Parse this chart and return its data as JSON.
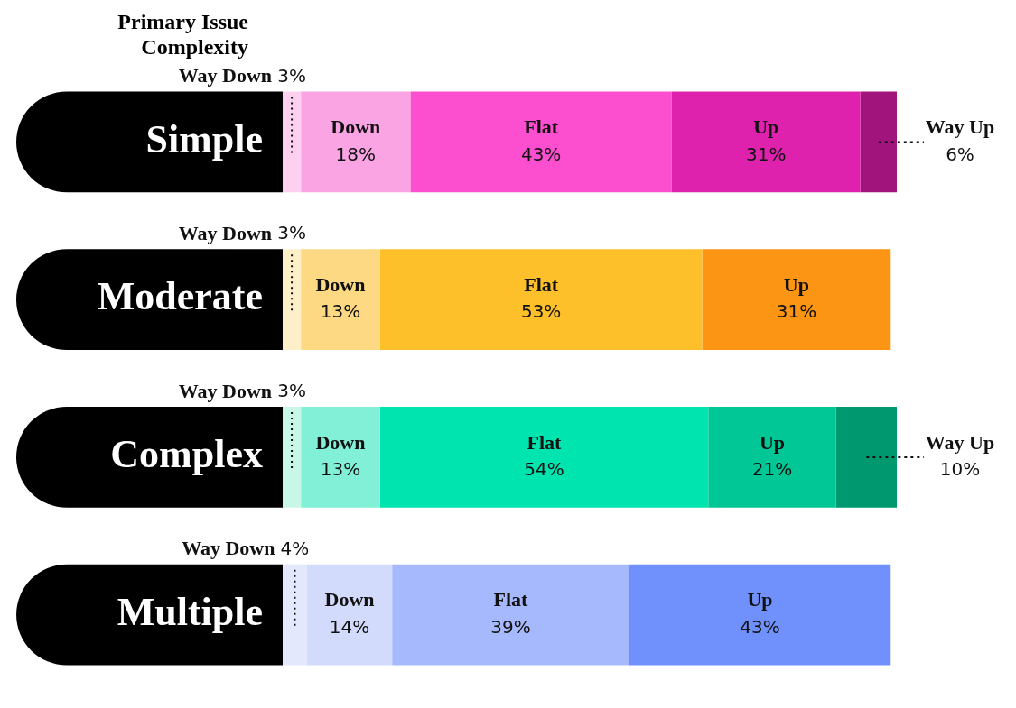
{
  "chart_data": {
    "type": "bar",
    "orientation": "horizontal",
    "stacked": true,
    "legend": false,
    "ylabel": "Primary Issue Complexity",
    "categories": [
      "Simple",
      "Moderate",
      "Complex",
      "Multiple"
    ],
    "series": [
      {
        "name": "Way Down",
        "colors": [
          "#fcd0ee",
          "#fdf0c8",
          "#c8f7e8",
          "#e4e8fd"
        ],
        "values": [
          3,
          3,
          3,
          4
        ],
        "value_labels": [
          "3%",
          "3%",
          "3%",
          "4%"
        ]
      },
      {
        "name": "Down",
        "colors": [
          "#fba4e4",
          "#fdd983",
          "#82f0d6",
          "#d2dbfc"
        ],
        "values": [
          18,
          13,
          13,
          14
        ],
        "value_labels": [
          "18%",
          "13%",
          "13%",
          "14%"
        ]
      },
      {
        "name": "Flat",
        "colors": [
          "#fb4fd0",
          "#fdc02a",
          "#00e5b0",
          "#a6b9fc"
        ],
        "values": [
          43,
          53,
          54,
          39
        ],
        "value_labels": [
          "43%",
          "53%",
          "54%",
          "39%"
        ]
      },
      {
        "name": "Up",
        "colors": [
          "#de22ad",
          "#fd9514",
          "#00c795",
          "#7090fc"
        ],
        "values": [
          31,
          31,
          21,
          43
        ],
        "value_labels": [
          "31%",
          "31%",
          "21%",
          "43%"
        ]
      },
      {
        "name": "Way Up",
        "colors": [
          "#a0147c",
          "#a0147c",
          "#00986e",
          "#00986e"
        ],
        "values": [
          6,
          null,
          10,
          null
        ],
        "value_labels": [
          "6%",
          null,
          "10%",
          null
        ]
      }
    ]
  }
}
